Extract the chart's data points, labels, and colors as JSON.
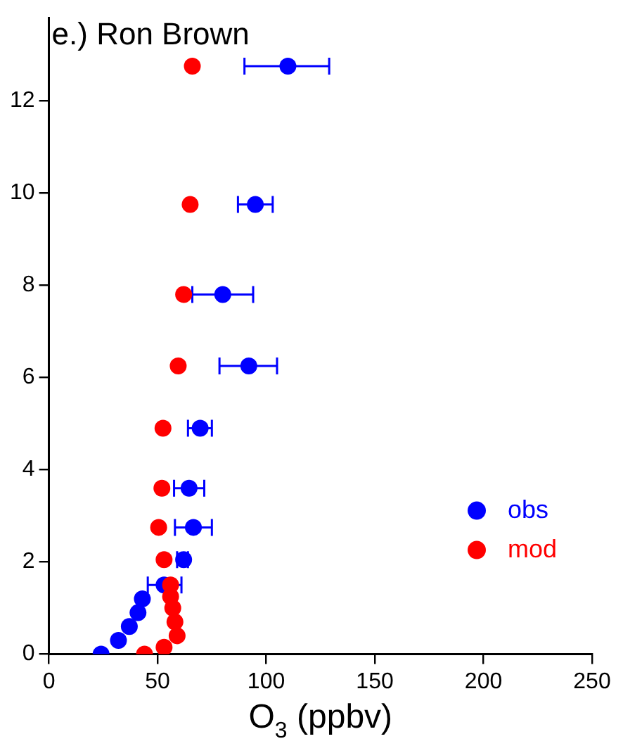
{
  "chart_data": {
    "type": "scatter",
    "title": "e.) Ron Brown",
    "xlabel": "O$_{3}$ (ppbv)",
    "xlim": [
      0,
      250
    ],
    "xticks": [
      0,
      50,
      100,
      150,
      200,
      250
    ],
    "ylim": [
      0,
      13.8
    ],
    "yticks": [
      0,
      2,
      4,
      6,
      8,
      10,
      12
    ],
    "grid": false,
    "legend": "bottom right",
    "marker": "circle",
    "series": [
      {
        "name": "obs",
        "color": "#0000ff",
        "x": [
          110,
          95,
          80,
          92,
          69.6,
          64.5,
          66.5,
          62,
          53,
          24,
          32,
          37,
          41,
          43
        ],
        "values": [
          12.75,
          9.75,
          7.8,
          6.25,
          4.9,
          3.6,
          2.75,
          2.05,
          1.5,
          0,
          0.3,
          0.6,
          0.9,
          1.2
        ],
        "xerrors": [
          [
            90,
            129
          ],
          [
            87,
            103
          ],
          [
            66,
            94
          ],
          [
            78.5,
            105
          ],
          [
            64,
            75
          ],
          [
            57.6,
            71.5
          ],
          [
            58,
            75
          ],
          [
            59,
            64
          ],
          [
            45.5,
            61
          ],
          null,
          null,
          null,
          null,
          null
        ]
      },
      {
        "name": "mod",
        "color": "#ff0000",
        "x": [
          66,
          65,
          62,
          59.5,
          52.5,
          52,
          50.5,
          53,
          56,
          44,
          53,
          59,
          58,
          57,
          56
        ],
        "values": [
          12.75,
          9.75,
          7.8,
          6.25,
          4.9,
          3.6,
          2.75,
          2.05,
          1.5,
          0,
          0.15,
          0.4,
          0.7,
          1.0,
          1.25
        ]
      }
    ]
  }
}
